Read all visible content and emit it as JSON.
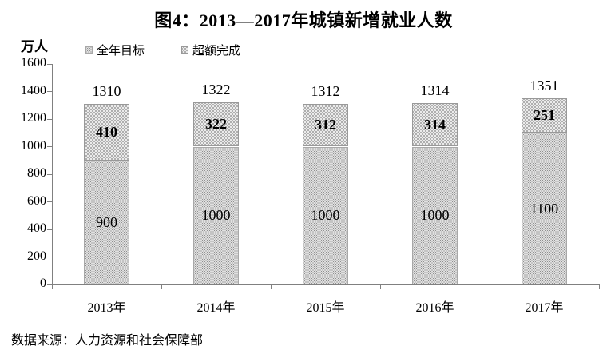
{
  "title": "图4：2013—2017年城镇新增就业人数",
  "y_axis_unit": "万人",
  "legend": {
    "items": [
      {
        "label": "全年目标",
        "swatch": "light-dotted"
      },
      {
        "label": "超额完成",
        "swatch": "dark-dotted"
      }
    ]
  },
  "source": "数据来源：人力资源和社会保障部",
  "colors": {
    "axis": "#808080",
    "text": "#000000",
    "target_fill": "#ffffff",
    "target_dot": "#8f8f8f",
    "exceeded_fill": "#aeaeae",
    "exceeded_dot": "#ffffff"
  },
  "chart_data": {
    "type": "bar",
    "stacked": true,
    "title": "图4：2013—2017年城镇新增就业人数",
    "ylabel": "万人",
    "categories": [
      "2013年",
      "2014年",
      "2015年",
      "2016年",
      "2017年"
    ],
    "series": [
      {
        "name": "全年目标",
        "values": [
          900,
          1000,
          1000,
          1000,
          1100
        ]
      },
      {
        "name": "超额完成",
        "values": [
          410,
          322,
          312,
          314,
          251
        ]
      }
    ],
    "totals": [
      1310,
      1322,
      1312,
      1314,
      1351
    ],
    "ylim": [
      0,
      1600
    ],
    "ytick_step": 200,
    "grid": false,
    "legend_position": "top"
  }
}
